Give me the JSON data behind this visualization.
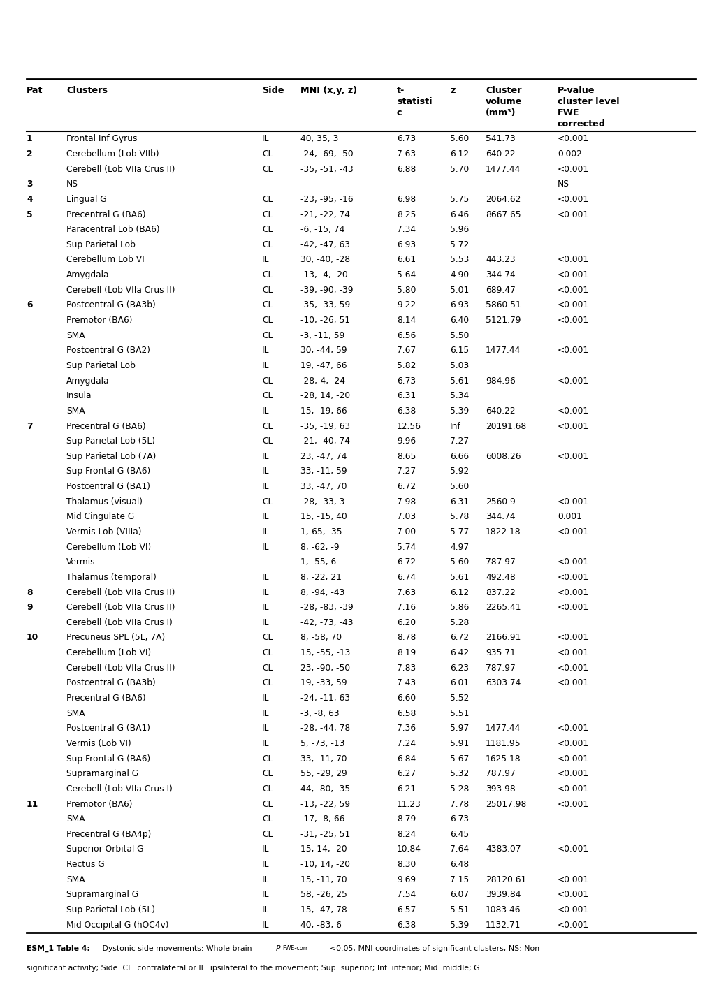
{
  "rows": [
    [
      "1",
      "Frontal Inf Gyrus",
      "IL",
      "40, 35, 3",
      "6.73",
      "5.60",
      "541.73",
      "<0.001"
    ],
    [
      "2",
      "Cerebellum (Lob VIIb)",
      "CL",
      "-24, -69, -50",
      "7.63",
      "6.12",
      "640.22",
      "0.002"
    ],
    [
      "",
      "Cerebell (Lob VIIa Crus II)",
      "CL",
      "-35, -51, -43",
      "6.88",
      "5.70",
      "1477.44",
      "<0.001"
    ],
    [
      "3",
      "NS",
      "",
      "",
      "",
      "",
      "",
      "NS"
    ],
    [
      "4",
      "Lingual G",
      "CL",
      "-23, -95, -16",
      "6.98",
      "5.75",
      "2064.62",
      "<0.001"
    ],
    [
      "5",
      "Precentral G (BA6)",
      "CL",
      "-21, -22, 74",
      "8.25",
      "6.46",
      "8667.65",
      "<0.001"
    ],
    [
      "",
      "Paracentral Lob (BA6)",
      "CL",
      "-6, -15, 74",
      "7.34",
      "5.96",
      "",
      ""
    ],
    [
      "",
      "Sup Parietal Lob",
      "CL",
      "-42, -47, 63",
      "6.93",
      "5.72",
      "",
      ""
    ],
    [
      "",
      "Cerebellum Lob VI",
      "IL",
      "30, -40, -28",
      "6.61",
      "5.53",
      "443.23",
      "<0.001"
    ],
    [
      "",
      "Amygdala",
      "CL",
      "-13, -4, -20",
      "5.64",
      "4.90",
      "344.74",
      "<0.001"
    ],
    [
      "",
      "Cerebell (Lob VIIa Crus II)",
      "CL",
      "-39, -90, -39",
      "5.80",
      "5.01",
      "689.47",
      "<0.001"
    ],
    [
      "6",
      "Postcentral G (BA3b)",
      "CL",
      "-35, -33, 59",
      "9.22",
      "6.93",
      "5860.51",
      "<0.001"
    ],
    [
      "",
      "Premotor (BA6)",
      "CL",
      "-10, -26, 51",
      "8.14",
      "6.40",
      "5121.79",
      "<0.001"
    ],
    [
      "",
      "SMA",
      "CL",
      "-3, -11, 59",
      "6.56",
      "5.50",
      "",
      ""
    ],
    [
      "",
      "Postcentral G (BA2)",
      "IL",
      "30, -44, 59",
      "7.67",
      "6.15",
      "1477.44",
      "<0.001"
    ],
    [
      "",
      "Sup Parietal Lob",
      "IL",
      "19, -47, 66",
      "5.82",
      "5.03",
      "",
      ""
    ],
    [
      "",
      "Amygdala",
      "CL",
      "-28,-4, -24",
      "6.73",
      "5.61",
      "984.96",
      "<0.001"
    ],
    [
      "",
      "Insula",
      "CL",
      "-28, 14, -20",
      "6.31",
      "5.34",
      "",
      ""
    ],
    [
      "",
      "SMA",
      "IL",
      "15, -19, 66",
      "6.38",
      "5.39",
      "640.22",
      "<0.001"
    ],
    [
      "7",
      "Precentral G (BA6)",
      "CL",
      "-35, -19, 63",
      "12.56",
      "Inf",
      "20191.68",
      "<0.001"
    ],
    [
      "",
      "Sup Parietal Lob (5L)",
      "CL",
      "-21, -40, 74",
      "9.96",
      "7.27",
      "",
      ""
    ],
    [
      "",
      "Sup Parietal Lob (7A)",
      "IL",
      "23, -47, 74",
      "8.65",
      "6.66",
      "6008.26",
      "<0.001"
    ],
    [
      "",
      "Sup Frontal G (BA6)",
      "IL",
      "33, -11, 59",
      "7.27",
      "5.92",
      "",
      ""
    ],
    [
      "",
      "Postcentral G (BA1)",
      "IL",
      "33, -47, 70",
      "6.72",
      "5.60",
      "",
      ""
    ],
    [
      "",
      "Thalamus (visual)",
      "CL",
      "-28, -33, 3",
      "7.98",
      "6.31",
      "2560.9",
      "<0.001"
    ],
    [
      "",
      "Mid Cingulate G",
      "IL",
      "15, -15, 40",
      "7.03",
      "5.78",
      "344.74",
      "0.001"
    ],
    [
      "",
      "Vermis Lob (VIIIa)",
      "IL",
      "1,-65, -35",
      "7.00",
      "5.77",
      "1822.18",
      "<0.001"
    ],
    [
      "",
      "Cerebellum (Lob VI)",
      "IL",
      "8, -62, -9",
      "5.74",
      "4.97",
      "",
      ""
    ],
    [
      "",
      "Vermis",
      "",
      "1, -55, 6",
      "6.72",
      "5.60",
      "787.97",
      "<0.001"
    ],
    [
      "",
      "Thalamus (temporal)",
      "IL",
      "8, -22, 21",
      "6.74",
      "5.61",
      "492.48",
      "<0.001"
    ],
    [
      "8",
      "Cerebell (Lob VIIa Crus II)",
      "IL",
      "8, -94, -43",
      "7.63",
      "6.12",
      "837.22",
      "<0.001"
    ],
    [
      "9",
      "Cerebell (Lob VIIa Crus II)",
      "IL",
      "-28, -83, -39",
      "7.16",
      "5.86",
      "2265.41",
      "<0.001"
    ],
    [
      "",
      "Cerebell (Lob VIIa Crus I)",
      "IL",
      "-42, -73, -43",
      "6.20",
      "5.28",
      "",
      ""
    ],
    [
      "10",
      "Precuneus SPL (5L, 7A)",
      "CL",
      "8, -58, 70",
      "8.78",
      "6.72",
      "2166.91",
      "<0.001"
    ],
    [
      "",
      "Cerebellum (Lob VI)",
      "CL",
      "15, -55, -13",
      "8.19",
      "6.42",
      "935.71",
      "<0.001"
    ],
    [
      "",
      "Cerebell (Lob VIIa Crus II)",
      "CL",
      "23, -90, -50",
      "7.83",
      "6.23",
      "787.97",
      "<0.001"
    ],
    [
      "",
      "Postcentral G (BA3b)",
      "CL",
      "19, -33, 59",
      "7.43",
      "6.01",
      "6303.74",
      "<0.001"
    ],
    [
      "",
      "Precentral G (BA6)",
      "IL",
      "-24, -11, 63",
      "6.60",
      "5.52",
      "",
      ""
    ],
    [
      "",
      "SMA",
      "IL",
      "-3, -8, 63",
      "6.58",
      "5.51",
      "",
      ""
    ],
    [
      "",
      "Postcentral G (BA1)",
      "IL",
      "-28, -44, 78",
      "7.36",
      "5.97",
      "1477.44",
      "<0.001"
    ],
    [
      "",
      "Vermis (Lob VI)",
      "IL",
      "5, -73, -13",
      "7.24",
      "5.91",
      "1181.95",
      "<0.001"
    ],
    [
      "",
      "Sup Frontal G (BA6)",
      "CL",
      "33, -11, 70",
      "6.84",
      "5.67",
      "1625.18",
      "<0.001"
    ],
    [
      "",
      "Supramarginal G",
      "CL",
      "55, -29, 29",
      "6.27",
      "5.32",
      "787.97",
      "<0.001"
    ],
    [
      "",
      "Cerebell (Lob VIIa Crus I)",
      "CL",
      "44, -80, -35",
      "6.21",
      "5.28",
      "393.98",
      "<0.001"
    ],
    [
      "11",
      "Premotor (BA6)",
      "CL",
      "-13, -22, 59",
      "11.23",
      "7.78",
      "25017.98",
      "<0.001"
    ],
    [
      "",
      "SMA",
      "CL",
      "-17, -8, 66",
      "8.79",
      "6.73",
      "",
      ""
    ],
    [
      "",
      "Precentral G (BA4p)",
      "CL",
      "-31, -25, 51",
      "8.24",
      "6.45",
      "",
      ""
    ],
    [
      "",
      "Superior Orbital G",
      "IL",
      "15, 14, -20",
      "10.84",
      "7.64",
      "4383.07",
      "<0.001"
    ],
    [
      "",
      "Rectus G",
      "IL",
      "-10, 14, -20",
      "8.30",
      "6.48",
      "",
      ""
    ],
    [
      "",
      "SMA",
      "IL",
      "15, -11, 70",
      "9.69",
      "7.15",
      "28120.61",
      "<0.001"
    ],
    [
      "",
      "Supramarginal G",
      "IL",
      "58, -26, 25",
      "7.54",
      "6.07",
      "3939.84",
      "<0.001"
    ],
    [
      "",
      "Sup Parietal Lob (5L)",
      "IL",
      "15, -47, 78",
      "6.57",
      "5.51",
      "1083.46",
      "<0.001"
    ],
    [
      "",
      "Mid Occipital G (hOC4v)",
      "IL",
      "40, -83, 6",
      "6.38",
      "5.39",
      "1132.71",
      "<0.001"
    ]
  ],
  "bold_pats": [
    "1",
    "2",
    "3",
    "4",
    "5",
    "6",
    "7",
    "8",
    "9",
    "10",
    "11"
  ],
  "col_labels": [
    "Pat",
    "Clusters",
    "Side",
    "MNI (x,y, z)",
    "t-\nstatisti\nc",
    "z",
    "Cluster\nvolume\n(mm³)",
    "P-value\ncluster level\nFWE\ncorrected"
  ],
  "fig_width": 10.2,
  "fig_height": 14.43,
  "dpi": 100
}
